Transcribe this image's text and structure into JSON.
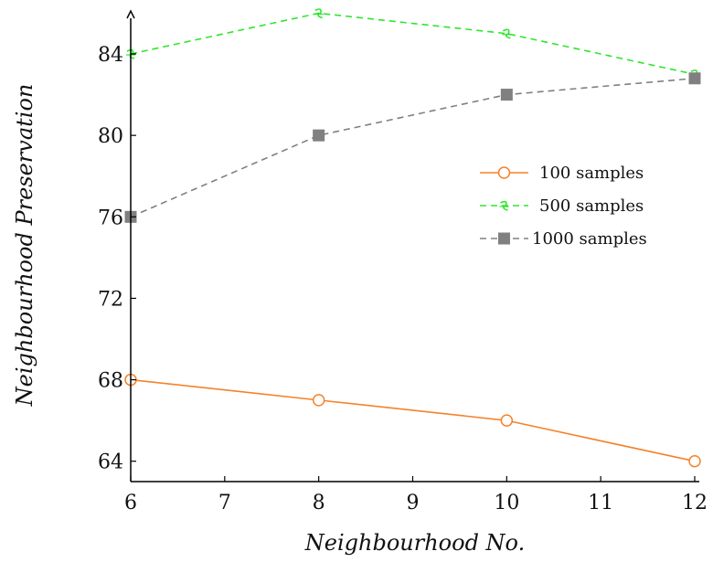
{
  "chart_data": {
    "type": "line",
    "xlabel": "Neighbourhood No.",
    "ylabel": "Neighbourhood Preservation",
    "xlim": [
      6,
      12
    ],
    "ylim": [
      63,
      86.2
    ],
    "xticks": [
      "6",
      "7",
      "8",
      "9",
      "10",
      "11",
      "12"
    ],
    "yticks": [
      "64",
      "68",
      "72",
      "76",
      "80",
      "84"
    ],
    "grid": false,
    "legend_position": "right",
    "x": [
      6,
      8,
      10,
      12
    ],
    "series": [
      {
        "name": "100 samples",
        "values": [
          68,
          67,
          66,
          64
        ],
        "color": "#f5822a",
        "dash": "solid",
        "marker": "circle"
      },
      {
        "name": "500 samples",
        "values": [
          84,
          86,
          85,
          83
        ],
        "color": "#2ee62e",
        "dash": "dashed",
        "marker": "star"
      },
      {
        "name": "1000 samples",
        "values": [
          76,
          80,
          82,
          82.8
        ],
        "color": "#808080",
        "dash": "dashed",
        "marker": "square"
      }
    ]
  }
}
